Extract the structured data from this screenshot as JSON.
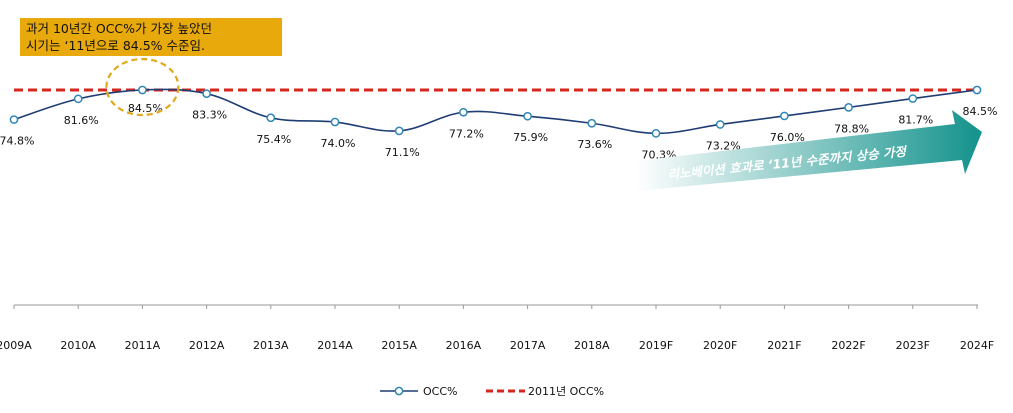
{
  "callout": {
    "line1": "과거 10년간 OCC%가 가장 높았던",
    "line2": "시기는 ‘11년으로 84.5% 수준임."
  },
  "arrow_label": "리노베이션 효과로 ‘11년 수준까지 상승 가정",
  "colors": {
    "line": "#1f3d73",
    "marker_fill": "#ffffff",
    "marker_stroke": "#2f86b6",
    "reference": "#d6261e",
    "callout_bg": "#e8a90d",
    "circle": "#e0a81a",
    "arrow_start": "#ffffff",
    "arrow_end": "#13928c"
  },
  "chart_data": {
    "type": "line",
    "categories": [
      "2009A",
      "2010A",
      "2011A",
      "2012A",
      "2013A",
      "2014A",
      "2015A",
      "2016A",
      "2017A",
      "2018A",
      "2019F",
      "2020F",
      "2021F",
      "2022F",
      "2023F",
      "2024F"
    ],
    "series": [
      {
        "name": "OCC%",
        "values": [
          74.8,
          81.6,
          84.5,
          83.3,
          75.4,
          74.0,
          71.1,
          77.2,
          75.9,
          73.6,
          70.3,
          73.2,
          76.0,
          78.8,
          81.7,
          84.5
        ],
        "labels": [
          "74.8%",
          "81.6%",
          "84.5%",
          "83.3%",
          "75.4%",
          "74.0%",
          "71.1%",
          "77.2%",
          "75.9%",
          "73.6%",
          "70.3%",
          "73.2%",
          "76.0%",
          "78.8%",
          "81.7%",
          "84.5%"
        ]
      },
      {
        "name": "2011년 OCC%",
        "constant": 84.5,
        "style": "dashed"
      }
    ],
    "legend": [
      "OCC%",
      "2011년 OCC%"
    ],
    "legend_position": "bottom-center",
    "grid": false
  }
}
